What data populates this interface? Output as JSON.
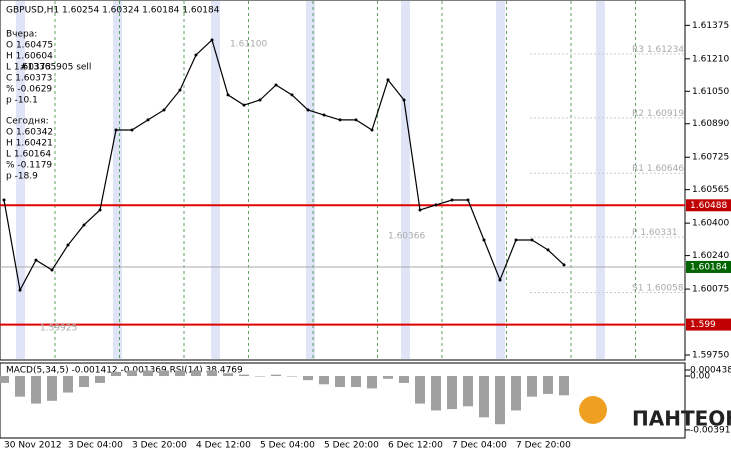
{
  "chart_data": [
    {
      "type": "line",
      "title": "GBPUSD,H1 1.60254 1.60324 1.60184 1.60184",
      "categories": [
        "30 Nov 2012",
        null,
        null,
        null,
        "3 Dec 04:00",
        null,
        null,
        null,
        "3 Dec 20:00",
        null,
        null,
        null,
        "4 Dec 12:00",
        null,
        null,
        null,
        "5 Dec 04:00",
        null,
        null,
        null,
        "5 Dec 20:00",
        null,
        null,
        null,
        "6 Dec 12:00",
        null,
        null,
        null,
        "7 Dec 04:00",
        null,
        null,
        null,
        "7 Dec 20:00",
        null,
        null,
        null
      ],
      "values": [
        1.60514,
        1.6007,
        1.60218,
        1.60169,
        1.60292,
        1.60391,
        1.60465,
        1.60859,
        1.60859,
        1.60909,
        1.60958,
        1.61056,
        1.61229,
        1.61303,
        1.61032,
        1.60982,
        1.61007,
        1.61081,
        1.61032,
        1.60958,
        1.60933,
        1.60909,
        1.60909,
        1.60859,
        1.61106,
        1.61007,
        1.60465,
        1.6049,
        1.60514,
        1.60514,
        1.60317,
        1.6012,
        1.60317,
        1.60317,
        1.60268,
        1.60194
      ],
      "color": "#000000",
      "ylim": [
        1.5975,
        1.615
      ],
      "yticks": [
        1.61375,
        {
          "value": 1.6121,
          "label": "1.61210"
        },
        {
          "value": 1.6105,
          "label": "1.61050"
        },
        {
          "value": 1.6089,
          "label": "1.60890"
        },
        1.60725,
        1.60565,
        {
          "value": 1.604,
          "label": "1.60400"
        },
        {
          "value": 1.6024,
          "label": "1.60240"
        },
        1.60075,
        {
          "value": 1.5975,
          "label": "1.59750"
        }
      ],
      "hlines": [
        {
          "value": 1.60488,
          "color": "#e00000"
        },
        {
          "value": 1.60184,
          "color": "#008000"
        },
        {
          "value": 1.599,
          "color": "#e00000"
        }
      ],
      "pivots": [
        {
          "name": "R3",
          "value": 1.61234
        },
        {
          "name": "R2",
          "value": 1.60919
        },
        {
          "name": "R1",
          "value": 1.60646
        },
        {
          "name": "P",
          "value": 1.60331
        },
        {
          "name": "S1",
          "value": 1.60058
        }
      ],
      "info": [
        "Вчера:",
        "O 1.60475",
        "H 1.60604",
        "L 1.60373",
        "C 1.60373",
        "% -0.0629",
        "p -10.1",
        "Сегодня:",
        "O 1.60342",
        "H 1.60421",
        "L 1.60164",
        "% -0.1179",
        "p -18.9"
      ],
      "annotations": [
        "1.61100",
        "#13365905 sell",
        "1.60366",
        "1.59925"
      ],
      "grid": true
    },
    {
      "type": "bar",
      "title": "MACD(5,34,5) -0.001412 -0.001369 RSI(14) 38.4769",
      "values": [
        -0.0005,
        -0.0015,
        -0.002,
        -0.0018,
        -0.0012,
        -0.0008,
        -0.0005,
        0.0003,
        0.0004,
        0.0004,
        0.0004,
        0.0004,
        0.0004,
        0.0004,
        0.0002,
        0.0001,
        0.0,
        0.0001,
        0.0,
        -0.0003,
        -0.0006,
        -0.0008,
        -0.0008,
        -0.0009,
        -0.0002,
        -0.0005,
        -0.002,
        -0.0025,
        -0.0024,
        -0.0022,
        -0.003,
        -0.0035,
        -0.0025,
        -0.0015,
        -0.0013,
        -0.0014
      ],
      "color": "#a0a0a0",
      "ylim": [
        -0.0045,
        0.0008
      ],
      "yticks": [
        0.000438,
        {
          "value": 0,
          "label": "0.00"
        },
        -0.003913
      ]
    },
    {
      "brand": "ПАНТЕОН"
    }
  ]
}
